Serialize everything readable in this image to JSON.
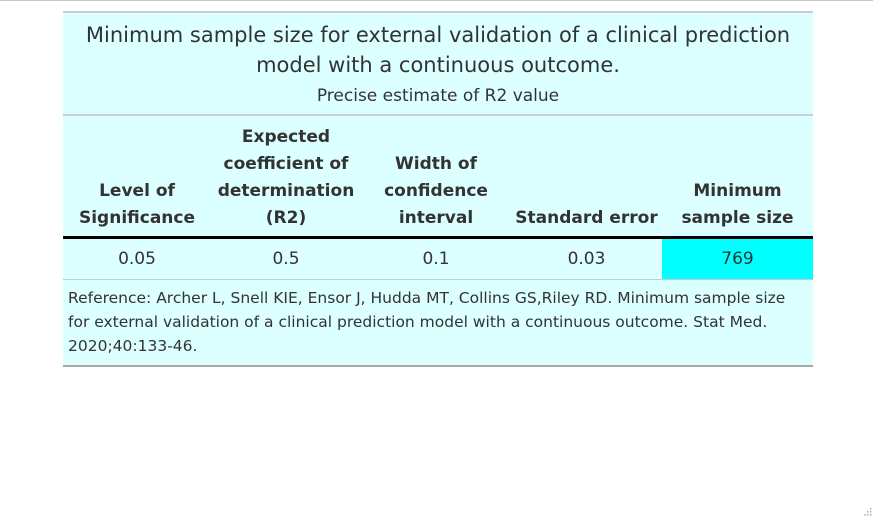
{
  "table": {
    "title": "Minimum sample size for external validation of a clinical prediction model with a continuous outcome.",
    "subtitle": "Precise estimate of R2 value",
    "headers": [
      "Level of Significance",
      "Expected coefficient of determination (R2)",
      "Width of confidence interval",
      "Standard error",
      "Minimum sample size"
    ],
    "rows": [
      {
        "level_of_significance": "0.05",
        "expected_r2": "0.5",
        "width_ci": "0.1",
        "standard_error": "0.03",
        "minimum_sample_size": "769"
      }
    ],
    "reference": "Reference: Archer L, Snell KIE, Ensor J, Hudda MT, Collins GS,Riley RD. Minimum sample size for external validation of a clinical prediction model with a continuous outcome. Stat Med. 2020;40:133-46."
  },
  "colors": {
    "table_background": "#dcffff",
    "highlight_cell": "#00ffff",
    "header_rule": "#000000"
  },
  "icons": {
    "resize_handle": "resize-grip-icon"
  }
}
